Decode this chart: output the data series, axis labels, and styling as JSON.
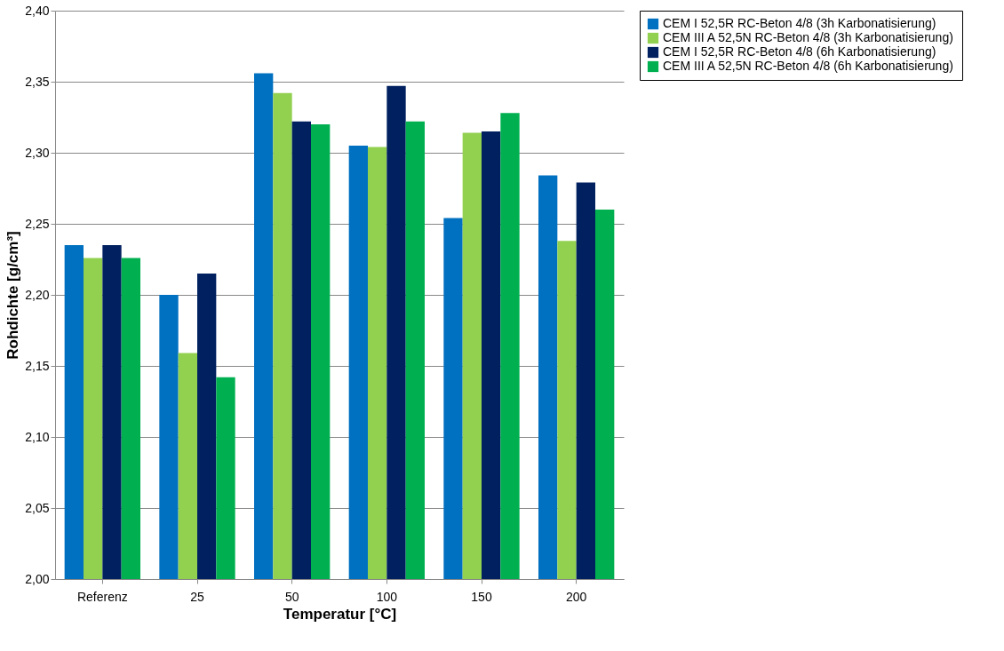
{
  "chart_data": {
    "type": "bar",
    "xlabel": "Temperatur [°C]",
    "ylabel": "Rohdichte [g/cm³]",
    "categories": [
      "Referenz",
      "25",
      "50",
      "100",
      "150",
      "200"
    ],
    "series": [
      {
        "name": "CEM I 52,5R RC-Beton 4/8 (3h Karbonatisierung)",
        "color": "#0070c0",
        "values": [
          2.235,
          2.2,
          2.356,
          2.305,
          2.254,
          2.284
        ]
      },
      {
        "name": "CEM III A 52,5N RC-Beton 4/8 (3h Karbonatisierung)",
        "color": "#92d050",
        "values": [
          2.226,
          2.159,
          2.342,
          2.304,
          2.314,
          2.238
        ]
      },
      {
        "name": "CEM I 52,5R RC-Beton 4/8 (6h Karbonatisierung)",
        "color": "#002060",
        "values": [
          2.235,
          2.215,
          2.322,
          2.347,
          2.315,
          2.279
        ]
      },
      {
        "name": "CEM III A 52,5N RC-Beton 4/8 (6h Karbonatisierung)",
        "color": "#00b050",
        "values": [
          2.226,
          2.142,
          2.32,
          2.322,
          2.328,
          2.26
        ]
      }
    ],
    "ylim": [
      2.0,
      2.4
    ],
    "yticks": [
      {
        "value": 2.0,
        "label": "2,00"
      },
      {
        "value": 2.05,
        "label": "2,05"
      },
      {
        "value": 2.1,
        "label": "2,10"
      },
      {
        "value": 2.15,
        "label": "2,15"
      },
      {
        "value": 2.2,
        "label": "2,20"
      },
      {
        "value": 2.25,
        "label": "2,25"
      },
      {
        "value": 2.3,
        "label": "2,30"
      },
      {
        "value": 2.35,
        "label": "2,35"
      },
      {
        "value": 2.4,
        "label": "2,40"
      }
    ],
    "grid": "y",
    "legend": "right"
  }
}
